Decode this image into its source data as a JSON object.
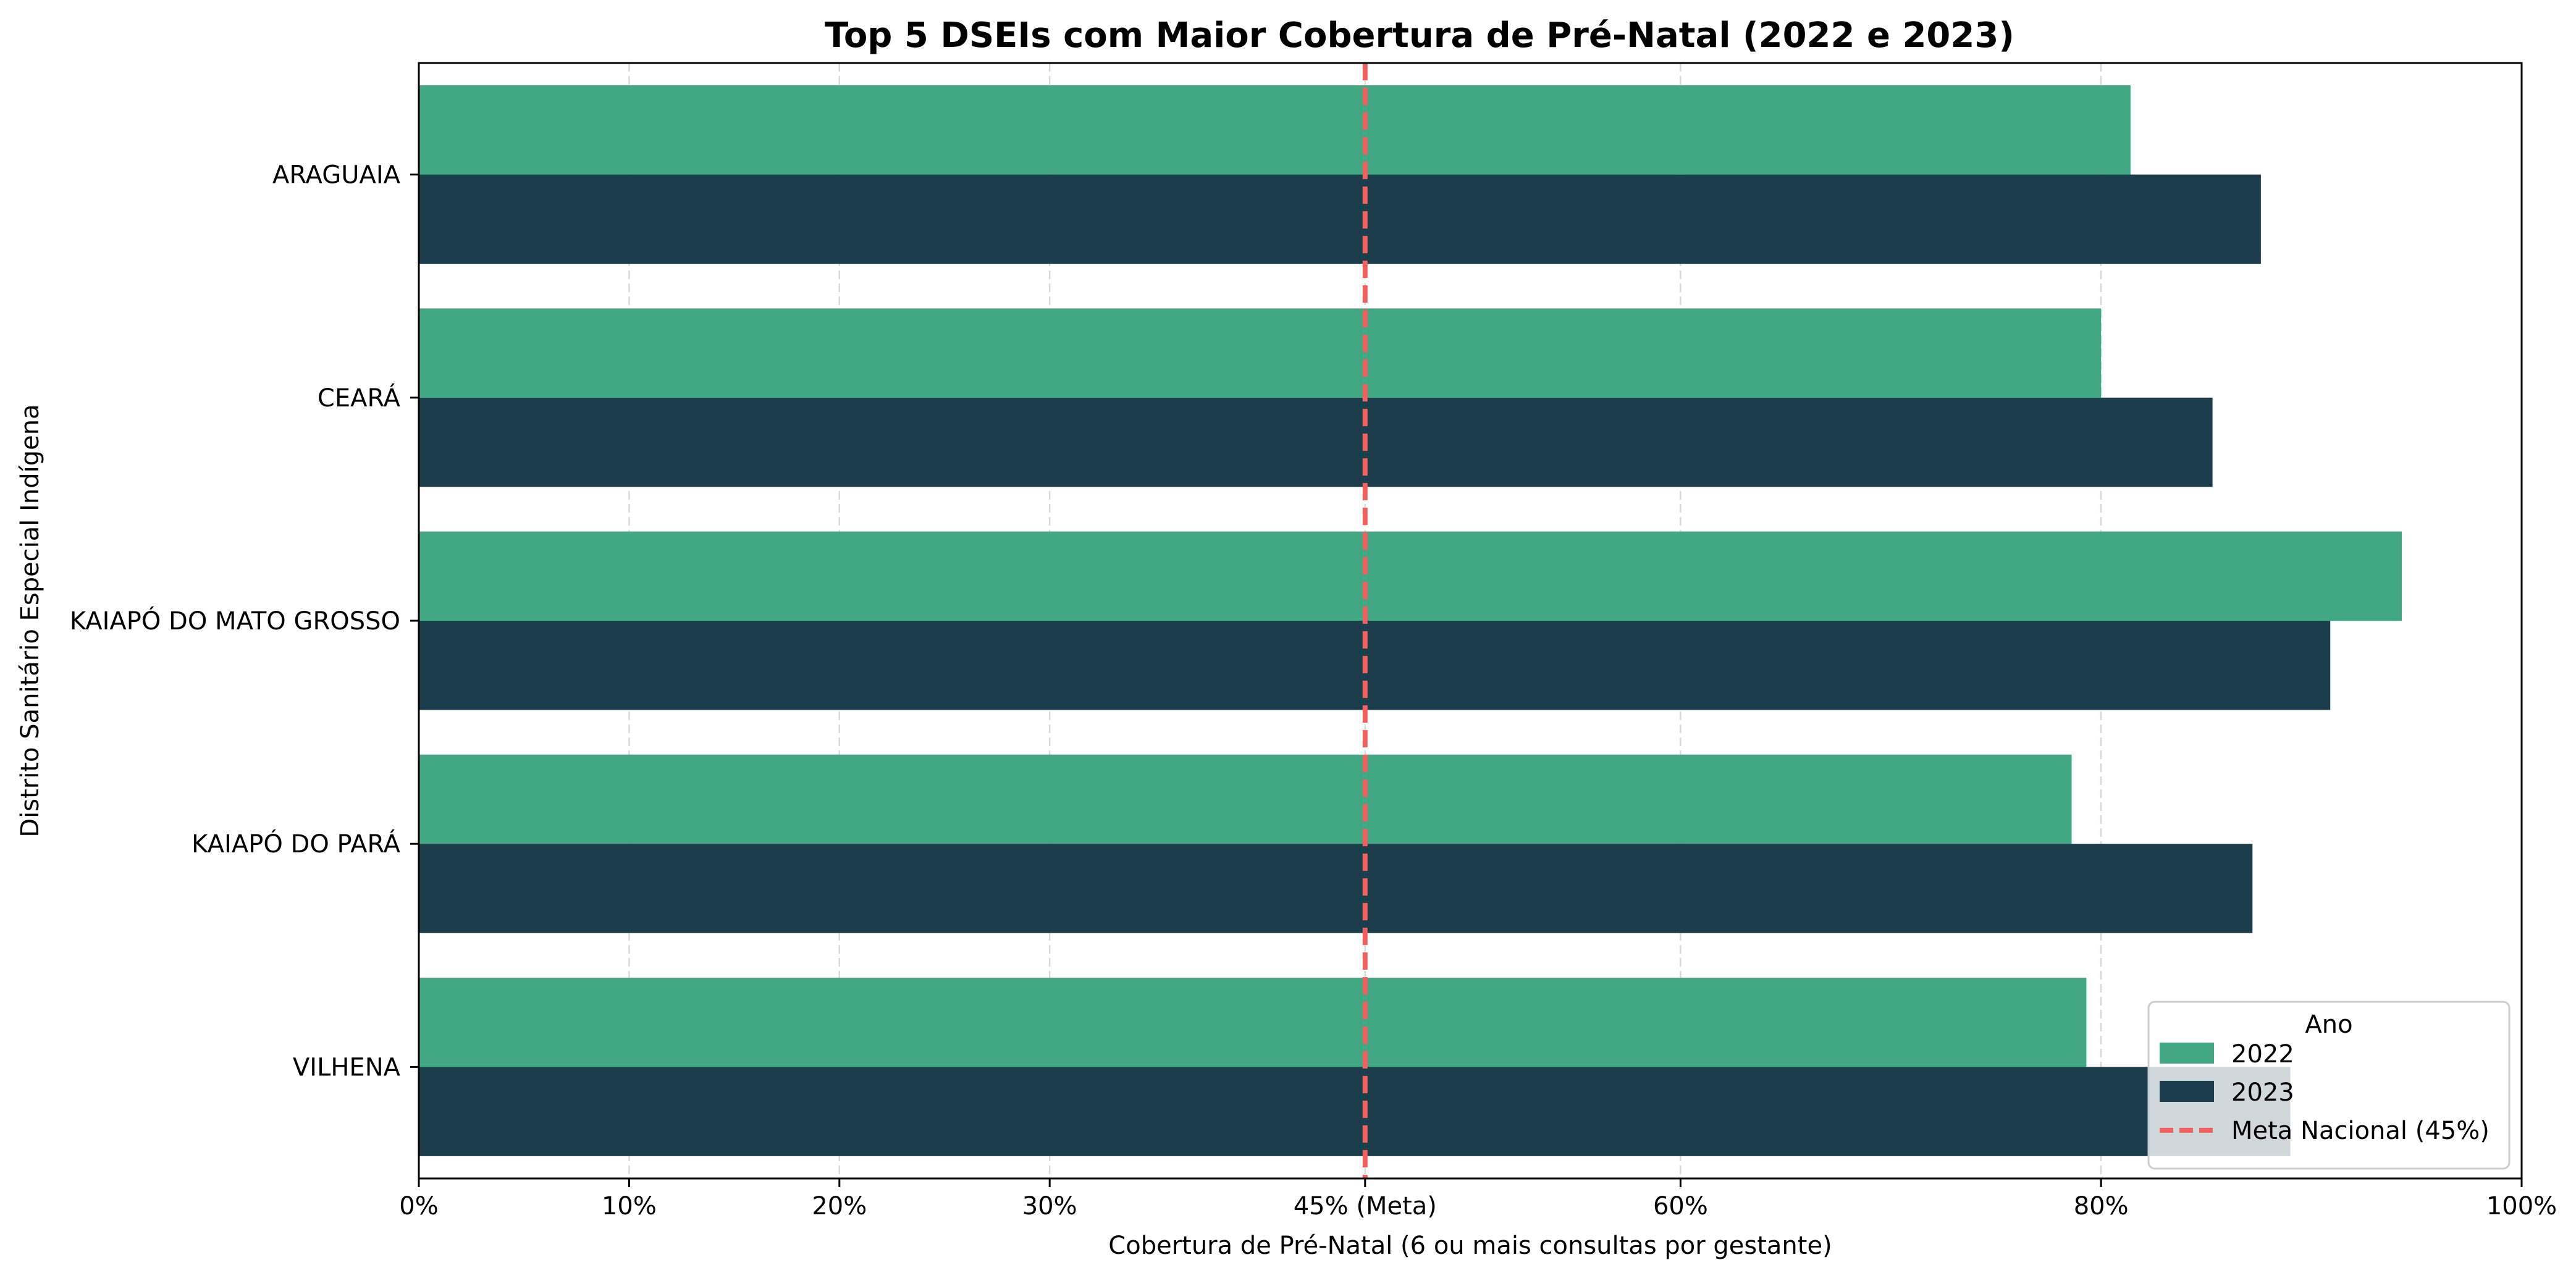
{
  "chart_data": {
    "type": "bar",
    "orientation": "horizontal",
    "title": "Top 5 DSEIs com Maior Cobertura de Pré-Natal (2022 e 2023)",
    "xlabel": "Cobertura de Pré-Natal (6 ou mais consultas por gestante)",
    "ylabel": "Distrito Sanitário Especial Indígena",
    "categories": [
      "ARAGUAIA",
      "CEARÁ",
      "KAIAPÓ DO MATO GROSSO",
      "KAIAPÓ DO PARÁ",
      "VILHENA"
    ],
    "series": [
      {
        "name": "2022",
        "color": "#41a883",
        "values": [
          81.4,
          80.0,
          94.3,
          78.6,
          79.3
        ]
      },
      {
        "name": "2023",
        "color": "#1b3d4c",
        "values": [
          87.6,
          85.3,
          90.9,
          87.2,
          89.0
        ]
      }
    ],
    "xlim": [
      0,
      100
    ],
    "xticks": [
      0,
      10,
      20,
      30,
      45,
      60,
      80,
      100
    ],
    "xtick_labels": [
      "0%",
      "10%",
      "20%",
      "30%",
      "45% (Meta)",
      "60%",
      "80%",
      "100%"
    ],
    "reference_line": {
      "value": 45,
      "label": "Meta Nacional (45%)",
      "color": "#f0605d",
      "style": "dashed"
    },
    "grid": {
      "x": true,
      "y": false,
      "style": "dashed"
    },
    "legend": {
      "title": "Ano",
      "placement": "lower-right",
      "entries": [
        "2022",
        "2023",
        "Meta Nacional (45%)"
      ]
    }
  }
}
